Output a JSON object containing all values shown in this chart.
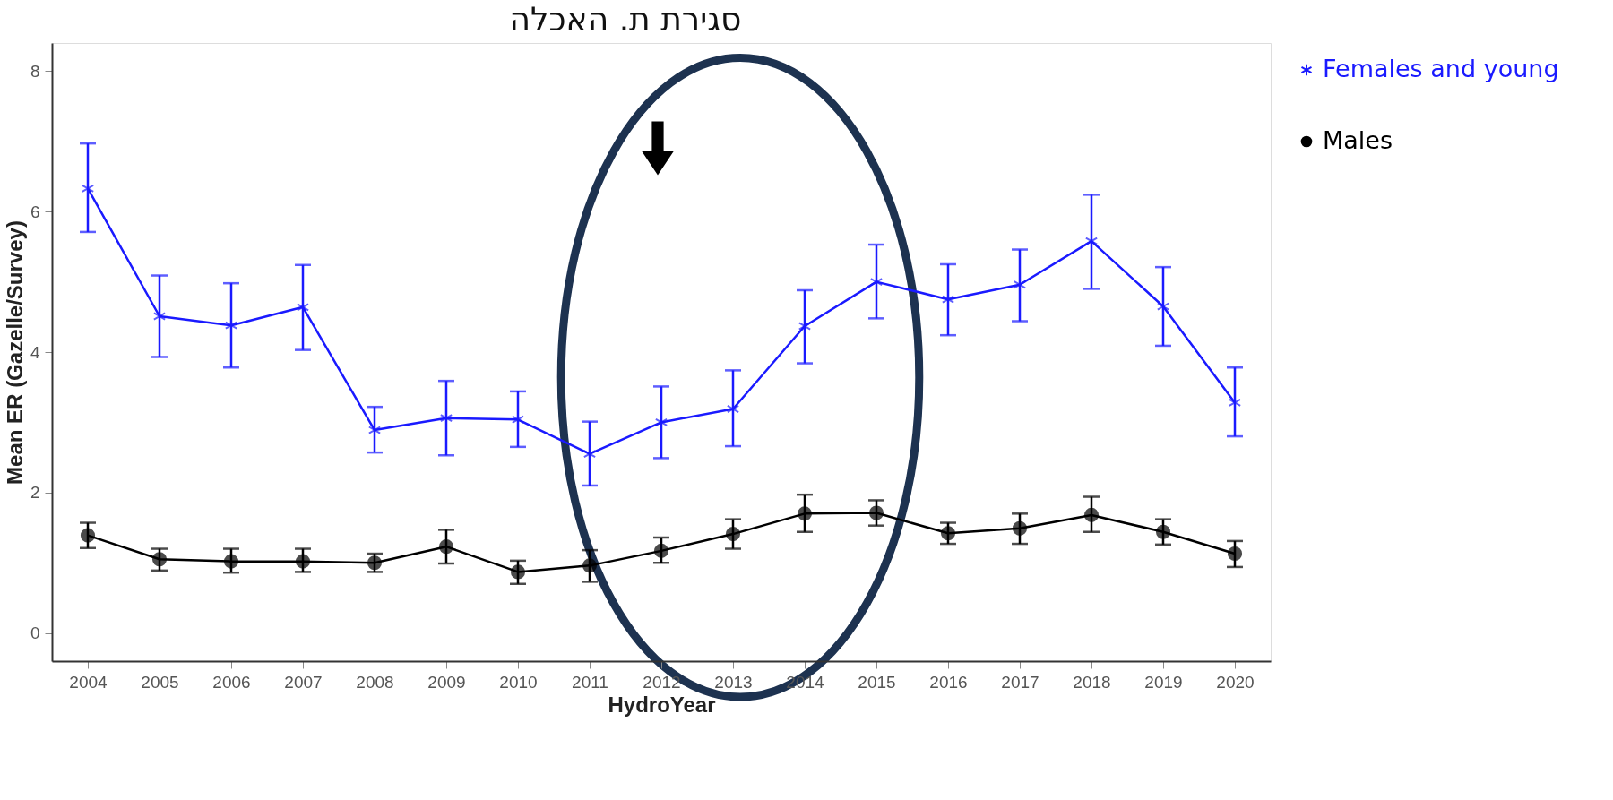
{
  "chart_data": {
    "type": "line",
    "title": "סגירת ת. האכלה",
    "xlabel": "HydroYear",
    "ylabel": "Mean ER (Gazelle/Survey)",
    "categories": [
      "2004",
      "2005",
      "2006",
      "2007",
      "2008",
      "2009",
      "2010",
      "2011",
      "2012",
      "2013",
      "2014",
      "2015",
      "2016",
      "2017",
      "2018",
      "2019",
      "2020"
    ],
    "series": [
      {
        "name": "Females and young",
        "color": "#1a1aff",
        "marker": "cross",
        "values": [
          6.33,
          4.51,
          4.38,
          4.64,
          2.89,
          3.06,
          3.04,
          2.55,
          3.0,
          3.19,
          4.37,
          5.0,
          4.75,
          4.96,
          5.58,
          4.65,
          3.28
        ],
        "errors": [
          [
            5.71,
            6.97
          ],
          [
            3.93,
            5.09
          ],
          [
            3.78,
            4.98
          ],
          [
            4.03,
            5.24
          ],
          [
            2.57,
            3.22
          ],
          [
            2.53,
            3.59
          ],
          [
            2.65,
            3.44
          ],
          [
            2.1,
            3.01
          ],
          [
            2.49,
            3.51
          ],
          [
            2.66,
            3.74
          ],
          [
            3.84,
            4.88
          ],
          [
            4.48,
            5.53
          ],
          [
            4.24,
            5.25
          ],
          [
            4.44,
            5.46
          ],
          [
            4.9,
            6.24
          ],
          [
            4.09,
            5.21
          ],
          [
            2.8,
            3.78
          ]
        ]
      },
      {
        "name": "Males",
        "color": "#000000",
        "marker": "circle",
        "values": [
          1.39,
          1.05,
          1.02,
          1.02,
          1.0,
          1.23,
          0.87,
          0.96,
          1.17,
          1.41,
          1.7,
          1.71,
          1.42,
          1.49,
          1.68,
          1.44,
          1.13
        ],
        "errors": [
          [
            1.21,
            1.57
          ],
          [
            0.89,
            1.2
          ],
          [
            0.86,
            1.2
          ],
          [
            0.87,
            1.2
          ],
          [
            0.87,
            1.13
          ],
          [
            0.99,
            1.47
          ],
          [
            0.7,
            1.03
          ],
          [
            0.73,
            1.18
          ],
          [
            1.0,
            1.36
          ],
          [
            1.2,
            1.62
          ],
          [
            1.44,
            1.97
          ],
          [
            1.53,
            1.89
          ],
          [
            1.27,
            1.57
          ],
          [
            1.27,
            1.7
          ],
          [
            1.44,
            1.94
          ],
          [
            1.26,
            1.62
          ],
          [
            0.94,
            1.31
          ]
        ]
      }
    ],
    "ylim": [
      -0.4,
      8.4
    ],
    "yticks": [
      0,
      2,
      4,
      6,
      8
    ],
    "grid": false,
    "legend": "top right",
    "line_style": "solid"
  }
}
